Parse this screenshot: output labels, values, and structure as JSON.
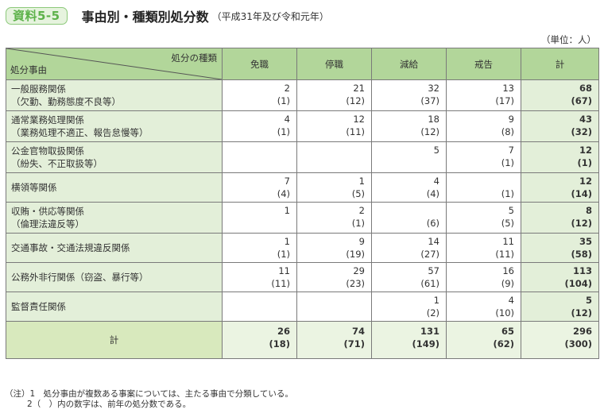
{
  "header": {
    "badge": "資料5-5",
    "title": "事由別・種類別処分数",
    "subtitle": "（平成31年及び令和元年）",
    "unit": "（単位：人）"
  },
  "table": {
    "corner_top": "処分の種類",
    "corner_bottom": "処分事由",
    "columns": [
      "免職",
      "停職",
      "減給",
      "戒告",
      "計"
    ],
    "rows": [
      {
        "label1": "一般服務関係",
        "label2": "（欠勤、勤務態度不良等）",
        "cells": [
          [
            "2",
            "(1)"
          ],
          [
            "21",
            "(12)"
          ],
          [
            "32",
            "(37)"
          ],
          [
            "13",
            "(17)"
          ],
          [
            "68",
            "(67)"
          ]
        ]
      },
      {
        "label1": "通常業務処理関係",
        "label2": "（業務処理不適正、報告怠慢等）",
        "cells": [
          [
            "4",
            "(1)"
          ],
          [
            "12",
            "(11)"
          ],
          [
            "18",
            "(12)"
          ],
          [
            "9",
            "(8)"
          ],
          [
            "43",
            "(32)"
          ]
        ]
      },
      {
        "label1": "公金官物取扱関係",
        "label2": "（紛失、不正取扱等）",
        "cells": [
          [
            "",
            ""
          ],
          [
            "",
            ""
          ],
          [
            "5",
            ""
          ],
          [
            "7",
            "(1)"
          ],
          [
            "12",
            "(1)"
          ]
        ]
      },
      {
        "label1": "横領等関係",
        "label2": "",
        "cells": [
          [
            "7",
            "(4)"
          ],
          [
            "1",
            "(5)"
          ],
          [
            "4",
            "(4)"
          ],
          [
            "",
            "(1)"
          ],
          [
            "12",
            "(14)"
          ]
        ]
      },
      {
        "label1": "収賄・供応等関係",
        "label2": "（倫理法違反等）",
        "cells": [
          [
            "1",
            ""
          ],
          [
            "2",
            "(1)"
          ],
          [
            "",
            "(6)"
          ],
          [
            "5",
            "(5)"
          ],
          [
            "8",
            "(12)"
          ]
        ]
      },
      {
        "label1": "交通事故・交通法規違反関係",
        "label2": "",
        "cells": [
          [
            "1",
            "(1)"
          ],
          [
            "9",
            "(19)"
          ],
          [
            "14",
            "(27)"
          ],
          [
            "11",
            "(11)"
          ],
          [
            "35",
            "(58)"
          ]
        ]
      },
      {
        "label1": "公務外非行関係（窃盗、暴行等）",
        "label2": "",
        "cells": [
          [
            "11",
            "(11)"
          ],
          [
            "29",
            "(23)"
          ],
          [
            "57",
            "(61)"
          ],
          [
            "16",
            "(9)"
          ],
          [
            "113",
            "(104)"
          ]
        ]
      },
      {
        "label1": "監督責任関係",
        "label2": "",
        "cells": [
          [
            "",
            ""
          ],
          [
            "",
            ""
          ],
          [
            "1",
            "(2)"
          ],
          [
            "4",
            "(10)"
          ],
          [
            "5",
            "(12)"
          ]
        ]
      }
    ],
    "total": {
      "label": "計",
      "cells": [
        [
          "26",
          "(18)"
        ],
        [
          "74",
          "(71)"
        ],
        [
          "131",
          "(149)"
        ],
        [
          "65",
          "(62)"
        ],
        [
          "296",
          "(300)"
        ]
      ]
    }
  },
  "notes": {
    "line1": "（注）1　処分事由が複数ある事案については、主たる事由で分類している。",
    "line2": "2（　）内の数字は、前年の処分数である。"
  },
  "colors": {
    "header_bg": "#b2d69a",
    "label_bg": "#e3efd9",
    "accent": "#5db24a"
  }
}
